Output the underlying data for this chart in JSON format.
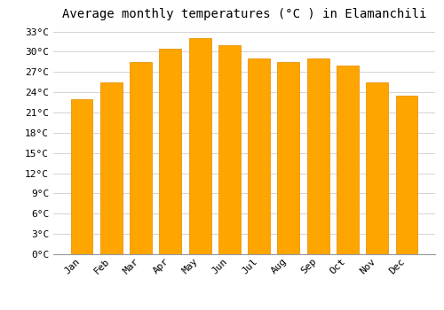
{
  "title": "Average monthly temperatures (°C ) in Elamanchili",
  "months": [
    "Jan",
    "Feb",
    "Mar",
    "Apr",
    "May",
    "Jun",
    "Jul",
    "Aug",
    "Sep",
    "Oct",
    "Nov",
    "Dec"
  ],
  "values": [
    23.0,
    25.5,
    28.5,
    30.5,
    32.0,
    31.0,
    29.0,
    28.5,
    29.0,
    28.0,
    25.5,
    23.5
  ],
  "bar_color": "#FFA500",
  "bar_edge_color": "#E8950A",
  "background_color": "#FFFFFF",
  "grid_color": "#CCCCCC",
  "ylim": [
    0,
    34
  ],
  "ytick_interval": 3,
  "title_fontsize": 10,
  "tick_fontsize": 8,
  "font_family": "monospace",
  "bar_width": 0.75
}
